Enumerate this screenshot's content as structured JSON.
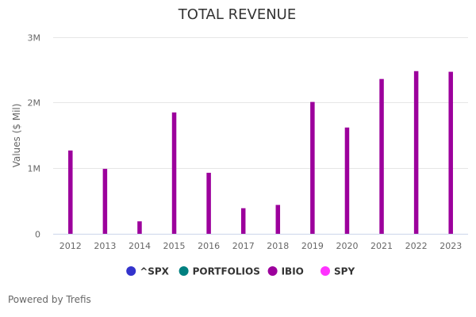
{
  "chart_data": {
    "type": "bar",
    "title": "TOTAL REVENUE",
    "xlabel": "",
    "ylabel": "Values ($ Mil)",
    "ylim": [
      0,
      3
    ],
    "yticks": [
      0,
      1,
      2,
      3
    ],
    "ytick_labels": [
      "0",
      "1M",
      "2M",
      "3M"
    ],
    "grid": true,
    "legend_position": "bottom",
    "categories": [
      "2012",
      "2013",
      "2014",
      "2015",
      "2016",
      "2017",
      "2018",
      "2019",
      "2020",
      "2021",
      "2022",
      "2023"
    ],
    "series": [
      {
        "name": "^SPX",
        "color": "#3333cc",
        "values": []
      },
      {
        "name": "PORTFOLIOS",
        "color": "#008080",
        "values": []
      },
      {
        "name": "IBIO",
        "color": "#9c009c",
        "values": [
          1.27,
          0.99,
          0.19,
          1.85,
          0.93,
          0.39,
          0.44,
          2.01,
          1.62,
          2.36,
          2.48,
          2.47
        ]
      },
      {
        "name": "SPY",
        "color": "#ff33ff",
        "values": []
      }
    ]
  },
  "footer": {
    "credit": "Powered by Trefis"
  }
}
